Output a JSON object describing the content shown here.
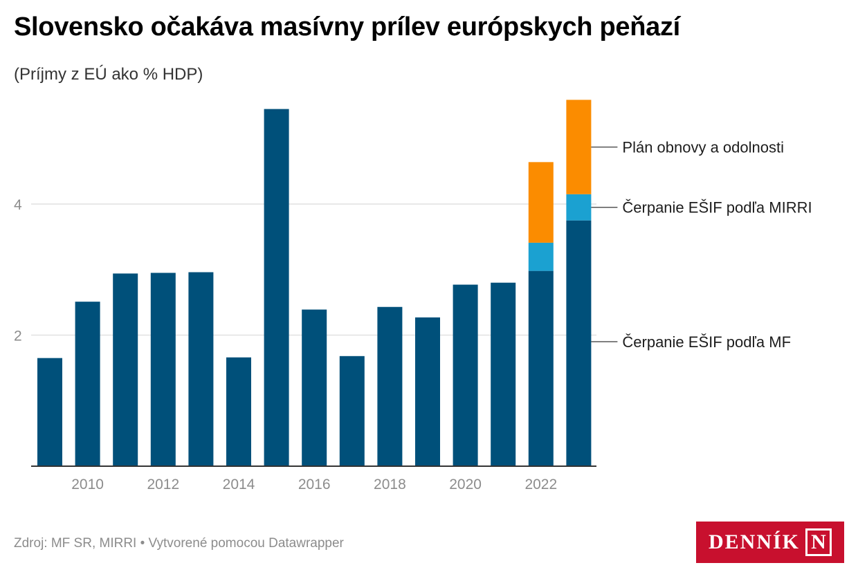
{
  "header": {
    "title": "Slovensko očakáva masívny prílev európskych peňazí",
    "subtitle": "(Príjmy z EÚ ako % HDP)"
  },
  "footer": {
    "source": "Zdroj: MF SR, MIRRI • Vytvorené pomocou Datawrapper"
  },
  "logo": {
    "text": "DENNÍK",
    "mark": "N"
  },
  "chart_data": {
    "type": "bar",
    "stacked": true,
    "categories": [
      "2009",
      "2010",
      "2011",
      "2012",
      "2013",
      "2014",
      "2015",
      "2016",
      "2017",
      "2018",
      "2019",
      "2020",
      "2021",
      "2022",
      "2023"
    ],
    "x_tick_labels": [
      "2010",
      "2012",
      "2014",
      "2016",
      "2018",
      "2020",
      "2022"
    ],
    "series": [
      {
        "name": "Čerpanie EŠIF podľa MF",
        "color": "#00507a",
        "values": [
          1.65,
          2.51,
          2.94,
          2.95,
          2.96,
          1.66,
          5.45,
          2.39,
          1.68,
          2.43,
          2.27,
          2.77,
          2.8,
          2.98,
          3.75
        ]
      },
      {
        "name": "Čerpanie EŠIF podľa MIRRI",
        "color": "#1ba1d1",
        "values": [
          0,
          0,
          0,
          0,
          0,
          0,
          0,
          0,
          0,
          0,
          0,
          0,
          0,
          0.43,
          0.4
        ]
      },
      {
        "name": "Plán obnovy a odolnosti",
        "color": "#fb8c00",
        "values": [
          0,
          0,
          0,
          0,
          0,
          0,
          0,
          0,
          0,
          0,
          0,
          0,
          0,
          1.23,
          1.44
        ]
      }
    ],
    "y_ticks": [
      2,
      4
    ],
    "ylim": [
      0,
      5.6
    ],
    "grid": true,
    "legend_placement": "right, inline next to last bar"
  }
}
